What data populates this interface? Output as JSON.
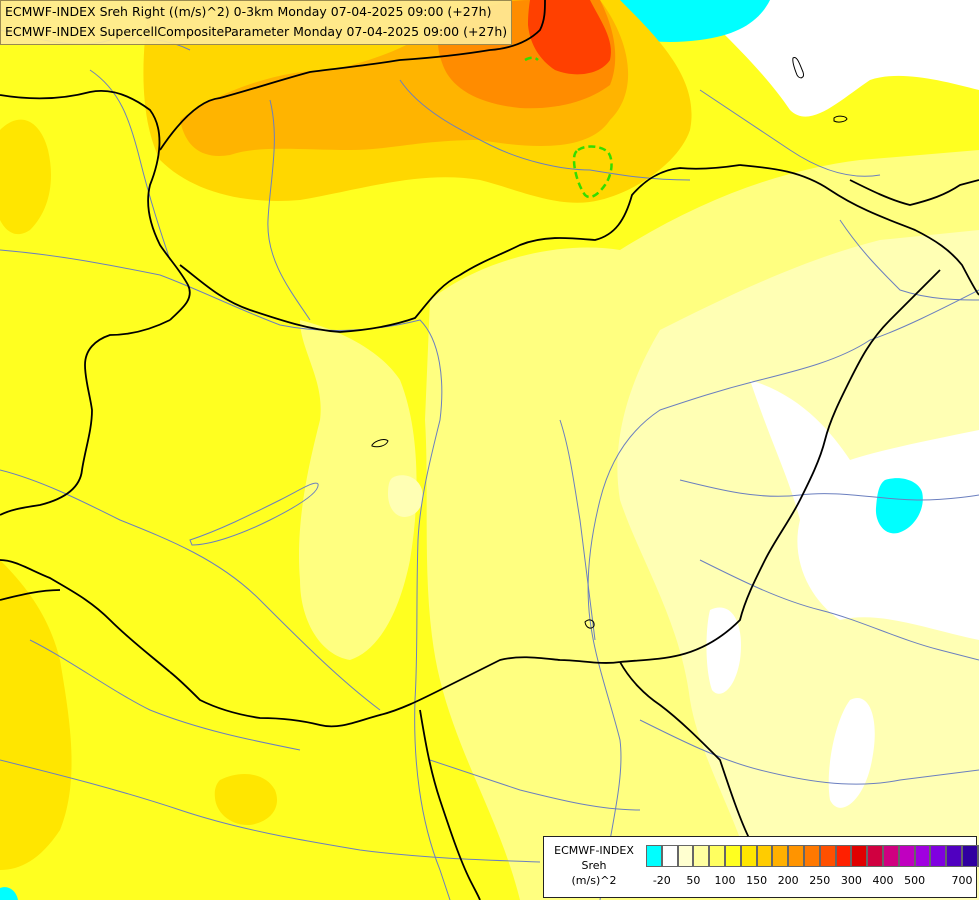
{
  "titles": {
    "line1": "ECMWF-INDEX Sreh Right ((m/s)^2) 0-3km Monday 07-04-2025 09:00 (+27h)",
    "line2": "ECMWF-INDEX SupercellCompositeParameter Monday 07-04-2025 09:00 (+27h)"
  },
  "legend": {
    "line1": "ECMWF-INDEX",
    "line2": "Sreh",
    "line3": "(m/s)^2",
    "colors": [
      "#00ffff",
      "#ffffff",
      "#ffffd0",
      "#ffffa0",
      "#ffff60",
      "#ffff20",
      "#ffe600",
      "#ffcc00",
      "#ffb000",
      "#ff9400",
      "#ff7800",
      "#ff5000",
      "#ff2000",
      "#e00000",
      "#d00040",
      "#d00080",
      "#c000c0",
      "#a000e0",
      "#8000e0",
      "#5000c0",
      "#3000a0",
      "#000080"
    ],
    "ticks": [
      "-20",
      "50",
      "100",
      "150",
      "200",
      "250",
      "300",
      "400",
      "500",
      "700"
    ]
  },
  "palette": {
    "background": "#ffff20",
    "pale": "#ffffb4",
    "light": "#ffff80",
    "gold": "#ffd700",
    "orange": "#ffb400",
    "dark_orange": "#ff8c00",
    "red": "#ff4000",
    "cyan": "#00ffff",
    "border_line": "#000000",
    "river_line": "#6b7fbf",
    "contour_line": "#33dd00"
  }
}
